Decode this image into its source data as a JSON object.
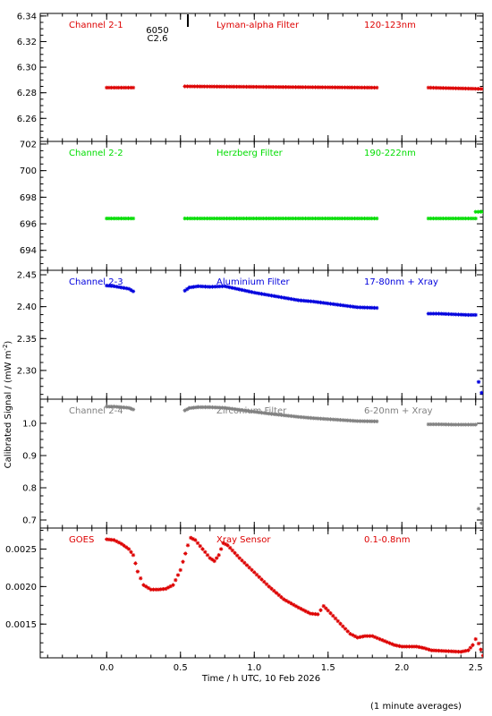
{
  "ylabel": "Calibrated Signal / (mW m",
  "ylabel_sup": "-2",
  "ylabel_end": ")",
  "xlabel": "Time / h UTC, 10 Feb 2026",
  "footnote": "(1 minute averages)",
  "flare_marker": {
    "x": 0.55,
    "line1": "6050",
    "line2": "C2.6"
  },
  "xaxis": {
    "range": [
      -0.45,
      2.55
    ],
    "ticks": [
      0.0,
      0.5,
      1.0,
      1.5,
      2.0,
      2.5
    ],
    "tick_labels": [
      "0.0",
      "0.5",
      "1.0",
      "1.5",
      "2.0",
      "2.5"
    ]
  },
  "chart_data": [
    {
      "type": "scatter",
      "channel": "Channel 2-1",
      "filter": "Lyman-alpha Filter",
      "band": "120-123nm",
      "color": "#dd0000",
      "ylim": [
        6.242,
        6.342
      ],
      "yticks": [
        6.26,
        6.28,
        6.3,
        6.32,
        6.34
      ],
      "ytick_labels": [
        "6.26",
        "6.28",
        "6.30",
        "6.32",
        "6.34"
      ],
      "segments": [
        {
          "x": [
            0.0,
            0.18
          ],
          "y": [
            6.284,
            6.284
          ]
        },
        {
          "x": [
            0.53,
            1.83
          ],
          "y": [
            6.285,
            6.284
          ]
        },
        {
          "x": [
            2.18,
            2.55
          ],
          "y": [
            6.284,
            6.283
          ]
        }
      ]
    },
    {
      "type": "scatter",
      "channel": "Channel 2-2",
      "filter": "Herzberg Filter",
      "band": "190-222nm",
      "color": "#00dd00",
      "ylim": [
        692.5,
        702.2
      ],
      "yticks": [
        694,
        696,
        698,
        700,
        702
      ],
      "ytick_labels": [
        "694",
        "696",
        "698",
        "700",
        "702"
      ],
      "segments": [
        {
          "x": [
            0.0,
            0.18
          ],
          "y": [
            696.4,
            696.4
          ]
        },
        {
          "x": [
            0.53,
            1.83
          ],
          "y": [
            696.4,
            696.4
          ]
        },
        {
          "x": [
            2.18,
            2.5
          ],
          "y": [
            696.4,
            696.4
          ]
        },
        {
          "x": [
            2.5,
            2.55
          ],
          "y": [
            696.9,
            696.9
          ]
        }
      ]
    },
    {
      "type": "scatter",
      "channel": "Channel 2-3",
      "filter": "Aluminium Filter",
      "band": "17-80nm + Xray",
      "color": "#0000dd",
      "ylim": [
        2.255,
        2.457
      ],
      "yticks": [
        2.3,
        2.35,
        2.4,
        2.45
      ],
      "ytick_labels": [
        "2.30",
        "2.35",
        "2.40",
        "2.45"
      ],
      "points": [
        [
          0.0,
          2.433
        ],
        [
          0.05,
          2.432
        ],
        [
          0.1,
          2.43
        ],
        [
          0.15,
          2.428
        ],
        [
          0.18,
          2.424
        ],
        [
          0.53,
          2.425
        ],
        [
          0.56,
          2.43
        ],
        [
          0.62,
          2.432
        ],
        [
          0.7,
          2.431
        ],
        [
          0.8,
          2.432
        ],
        [
          0.9,
          2.427
        ],
        [
          1.0,
          2.422
        ],
        [
          1.1,
          2.418
        ],
        [
          1.2,
          2.414
        ],
        [
          1.3,
          2.41
        ],
        [
          1.4,
          2.408
        ],
        [
          1.5,
          2.405
        ],
        [
          1.6,
          2.402
        ],
        [
          1.7,
          2.399
        ],
        [
          1.83,
          2.398
        ],
        [
          2.18,
          2.389
        ],
        [
          2.25,
          2.389
        ],
        [
          2.35,
          2.388
        ],
        [
          2.45,
          2.387
        ],
        [
          2.5,
          2.387
        ]
      ],
      "outliers": [
        [
          2.52,
          2.282
        ],
        [
          2.54,
          2.265
        ]
      ]
    },
    {
      "type": "scatter",
      "channel": "Channel 2-4",
      "filter": "Zirconium Filter",
      "band": "6-20nm + Xray",
      "color": "#808080",
      "ylim": [
        0.675,
        1.075
      ],
      "yticks": [
        0.7,
        0.8,
        0.9,
        1.0
      ],
      "ytick_labels": [
        "0.7",
        "0.8",
        "0.9",
        "1.0"
      ],
      "points": [
        [
          0.0,
          1.052
        ],
        [
          0.05,
          1.052
        ],
        [
          0.1,
          1.05
        ],
        [
          0.15,
          1.048
        ],
        [
          0.18,
          1.043
        ],
        [
          0.53,
          1.04
        ],
        [
          0.56,
          1.047
        ],
        [
          0.62,
          1.05
        ],
        [
          0.7,
          1.05
        ],
        [
          0.8,
          1.048
        ],
        [
          0.9,
          1.042
        ],
        [
          1.0,
          1.036
        ],
        [
          1.1,
          1.03
        ],
        [
          1.2,
          1.025
        ],
        [
          1.3,
          1.02
        ],
        [
          1.4,
          1.016
        ],
        [
          1.5,
          1.013
        ],
        [
          1.6,
          1.01
        ],
        [
          1.7,
          1.007
        ],
        [
          1.83,
          1.006
        ],
        [
          2.18,
          0.997
        ],
        [
          2.25,
          0.997
        ],
        [
          2.35,
          0.996
        ],
        [
          2.45,
          0.996
        ],
        [
          2.5,
          0.996
        ]
      ],
      "outliers": [
        [
          2.52,
          0.735
        ],
        [
          2.54,
          0.69
        ]
      ]
    },
    {
      "type": "scatter",
      "channel": "GOES",
      "filter": "Xray Sensor",
      "band": "0.1-0.8nm",
      "color": "#dd0000",
      "ylim": [
        0.00105,
        0.00278
      ],
      "yticks": [
        0.0015,
        0.002,
        0.0025
      ],
      "ytick_labels": [
        "0.0015",
        "0.0020",
        "0.0025"
      ],
      "points": [
        [
          0.0,
          0.00263
        ],
        [
          0.05,
          0.00262
        ],
        [
          0.1,
          0.00257
        ],
        [
          0.15,
          0.0025
        ],
        [
          0.18,
          0.00242
        ],
        [
          0.21,
          0.0022
        ],
        [
          0.25,
          0.00202
        ],
        [
          0.3,
          0.00196
        ],
        [
          0.35,
          0.00196
        ],
        [
          0.4,
          0.00197
        ],
        [
          0.45,
          0.00202
        ],
        [
          0.5,
          0.00222
        ],
        [
          0.55,
          0.00255
        ],
        [
          0.57,
          0.00265
        ],
        [
          0.6,
          0.00262
        ],
        [
          0.65,
          0.0025
        ],
        [
          0.7,
          0.00238
        ],
        [
          0.73,
          0.00234
        ],
        [
          0.76,
          0.00242
        ],
        [
          0.79,
          0.00258
        ],
        [
          0.82,
          0.00255
        ],
        [
          0.9,
          0.00238
        ],
        [
          1.0,
          0.00219
        ],
        [
          1.1,
          0.002
        ],
        [
          1.2,
          0.00183
        ],
        [
          1.3,
          0.00172
        ],
        [
          1.38,
          0.00164
        ],
        [
          1.43,
          0.00163
        ],
        [
          1.47,
          0.00174
        ],
        [
          1.5,
          0.00168
        ],
        [
          1.6,
          0.00147
        ],
        [
          1.65,
          0.00137
        ],
        [
          1.7,
          0.00132
        ],
        [
          1.75,
          0.00134
        ],
        [
          1.8,
          0.00134
        ],
        [
          1.85,
          0.0013
        ],
        [
          1.9,
          0.00126
        ],
        [
          1.95,
          0.00122
        ],
        [
          2.0,
          0.0012
        ],
        [
          2.1,
          0.0012
        ],
        [
          2.15,
          0.00118
        ],
        [
          2.2,
          0.00115
        ],
        [
          2.3,
          0.00114
        ],
        [
          2.4,
          0.00113
        ],
        [
          2.45,
          0.00115
        ],
        [
          2.48,
          0.00122
        ],
        [
          2.5,
          0.0013
        ],
        [
          2.52,
          0.00124
        ],
        [
          2.55,
          0.00108
        ]
      ]
    }
  ]
}
